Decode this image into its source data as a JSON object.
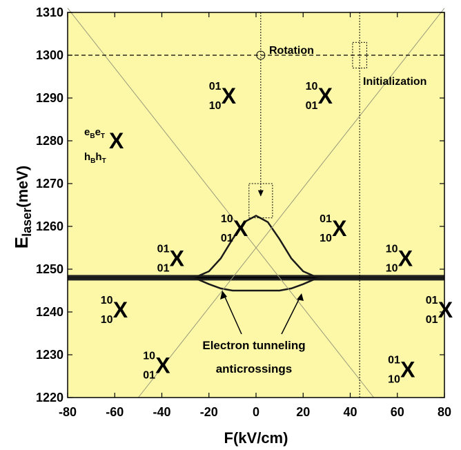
{
  "chart_data": {
    "type": "line",
    "title": "",
    "xlabel": "F(kV/cm)",
    "ylabel_main": "E",
    "ylabel_sub": "laser",
    "ylabel_unit": "(meV)",
    "xlim": [
      -80,
      80
    ],
    "ylim": [
      1220,
      1310
    ],
    "xticks": [
      -80,
      -60,
      -40,
      -20,
      0,
      20,
      40,
      60,
      80
    ],
    "yticks": [
      1220,
      1230,
      1240,
      1250,
      1260,
      1270,
      1280,
      1290,
      1300,
      1310
    ],
    "grid": false,
    "background_color": "#fcf8a8",
    "series": [
      {
        "kind": "horizontal",
        "y": 1248,
        "x_range": [
          -80,
          80
        ]
      },
      {
        "kind": "lower-branch",
        "x": [
          -80,
          -40,
          -30,
          -25,
          -20,
          -15,
          -10,
          -5,
          0,
          5,
          10,
          15,
          20,
          25,
          30,
          40,
          80
        ],
        "y": [
          1248,
          1248,
          1248,
          1248.3,
          1249.5,
          1252.5,
          1257,
          1261,
          1262.5,
          1261,
          1257,
          1252.5,
          1249.5,
          1248.3,
          1248,
          1248,
          1248
        ]
      },
      {
        "kind": "upper-branch",
        "x": [
          -80,
          -40,
          -30,
          -25,
          -20,
          -15,
          -10,
          -5,
          0,
          5,
          10,
          15,
          20,
          25,
          30,
          40,
          80
        ],
        "y": [
          1248,
          1248,
          1248,
          1247.7,
          1246.5,
          1245.5,
          1245,
          1245,
          1245,
          1245,
          1245,
          1245.5,
          1246.5,
          1247.7,
          1248,
          1248,
          1248
        ]
      },
      {
        "kind": "diagonal",
        "x": [
          -50,
          80
        ],
        "y": [
          1220,
          1311
        ]
      },
      {
        "kind": "diagonal",
        "x": [
          50,
          -80
        ],
        "y": [
          1220,
          1311
        ]
      }
    ],
    "annotations": {
      "rotation": "Rotation",
      "initialization": "Initialization",
      "tunneling_line1": "Electron tunneling",
      "tunneling_line2": "anticrossings"
    },
    "markers": {
      "rotation_x": 2,
      "initialization_x": 44,
      "laser_energy": 1300,
      "tunneling_box": {
        "x": [
          -3,
          7
        ],
        "y": [
          1262,
          1270
        ]
      },
      "init_box": {
        "x": [
          41,
          47
        ],
        "y": [
          1297,
          1303
        ]
      }
    },
    "legend_states": [
      {
        "tl": "10",
        "bl": "10",
        "x_val": -66,
        "y_val": 1241
      },
      {
        "tl": "01",
        "bl": "01",
        "x_val": -42,
        "y_val": 1253
      },
      {
        "tl": "10",
        "bl": "01",
        "x_val": -48,
        "y_val": 1228
      },
      {
        "tl": "10",
        "bl": "01",
        "x_val": -15,
        "y_val": 1260
      },
      {
        "tl": "10",
        "bl": "01",
        "x_val": 21,
        "y_val": 1291
      },
      {
        "tl": "01",
        "bl": "10",
        "x_val": 27,
        "y_val": 1260
      },
      {
        "tl": "01",
        "bl": "10",
        "x_val": -20,
        "y_val": 1291
      },
      {
        "tl": "10",
        "bl": "10",
        "x_val": 55,
        "y_val": 1253
      },
      {
        "tl": "01",
        "bl": "01",
        "x_val": 72,
        "y_val": 1241
      },
      {
        "tl": "01",
        "bl": "10",
        "x_val": 56,
        "y_val": 1227
      }
    ],
    "notation": {
      "e_b": "e",
      "e_b_sub": "B",
      "e_t": "e",
      "e_t_sub": "T",
      "h_b": "h",
      "h_b_sub": "B",
      "h_t": "h",
      "h_t_sub": "T",
      "symbol": "X",
      "color": "#1a1adb"
    },
    "state_symbol": "X"
  }
}
